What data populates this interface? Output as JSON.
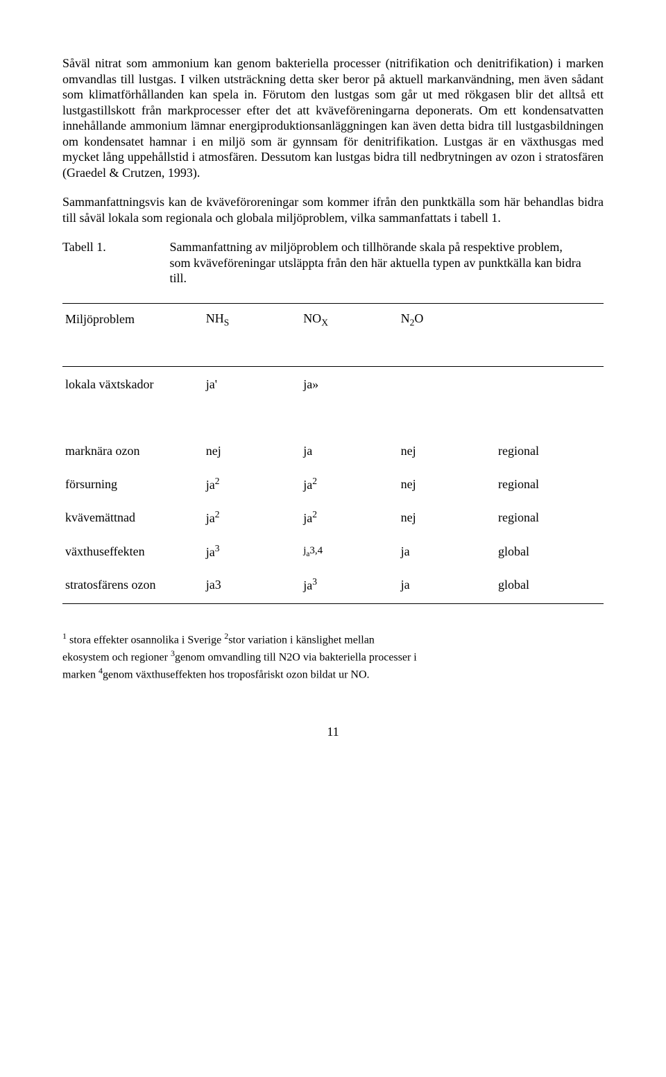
{
  "para1": "Såväl nitrat som ammonium kan genom bakteriella processer (nitrifikation och denitrifikation) i marken omvandlas till lustgas. I vilken utsträckning detta sker beror på aktuell markanvändning, men även sådant som klimatförhållanden kan spela in. Förutom den lustgas som går ut med rökgasen blir det alltså ett lustgastillskott från markprocesser efter det att kväveföreningarna deponerats. Om ett kondensatvatten innehållande ammonium lämnar energiproduktionsanläggningen kan även detta bidra till lustgasbildningen om kondensatet hamnar i en miljö som är gynnsam för denitrifikation. Lustgas är en växthusgas med mycket lång uppehållstid i atmosfären. Dessutom kan lustgas bidra till nedbrytningen av ozon i stratosfären (Graedel & Crutzen, 1993).",
  "para2": "Sammanfattningsvis kan de kväveföroreningar som kommer ifrån den punktkälla som här behandlas bidra till såväl lokala som regionala och globala miljöproblem, vilka sammanfattats i tabell 1.",
  "table_caption_label": "Tabell 1.",
  "table_caption_text": "Sammanfattning av miljöproblem och tillhörande skala på respektive problem, som kväveföreningar utsläppta från den här aktuella typen av punktkälla kan bidra till.",
  "headers": {
    "c1": "Miljöproblem",
    "c2_main": "NH",
    "c2_sub": "S",
    "c3_main": "NO",
    "c3_sub": "X",
    "c4_main": "N",
    "c4_sub": "2",
    "c4_suffix": "O"
  },
  "rows": {
    "local": {
      "label": "lokala växtskador",
      "c2": "ja'",
      "c3": "ja»",
      "c4": "",
      "c5": ""
    },
    "ozone_ground": {
      "label": "marknära ozon",
      "c2": "nej",
      "c3": "ja",
      "c4": "nej",
      "c5": "regional"
    },
    "acid": {
      "label": "försurning",
      "c2": "ja",
      "c2_sup": "2",
      "c3": "ja",
      "c3_sup": "2",
      "c4": "nej",
      "c5": "regional"
    },
    "n_sat": {
      "label": "kvävemättnad",
      "c2": "ja",
      "c2_sup": "2",
      "c3": "ja",
      "c3_sup": "2",
      "c4": "nej",
      "c5": "regional"
    },
    "greenhouse": {
      "label": "växthuseffekten",
      "c2": "ja",
      "c2_sup": "3",
      "c3_pre": "j",
      "c3_sub": "a",
      "c3_post": "3,4",
      "c4": "ja",
      "c5": "global"
    },
    "strat": {
      "label": "stratosfärens ozon",
      "c2": "ja3",
      "c3": "ja",
      "c3_sup": "3",
      "c4": "ja",
      "c5": "global"
    }
  },
  "footnote_parts": {
    "s1": " stora effekter osannolika i Sverige ",
    "s2": "stor variation i känslighet mellan ekosystem och regioner ",
    "s3": "genom omvandling till N2O via bakteriella processer i marken ",
    "s4": "genom växthuseffekten hos troposfåriskt ozon bildat ur NO."
  },
  "page_number": "11"
}
